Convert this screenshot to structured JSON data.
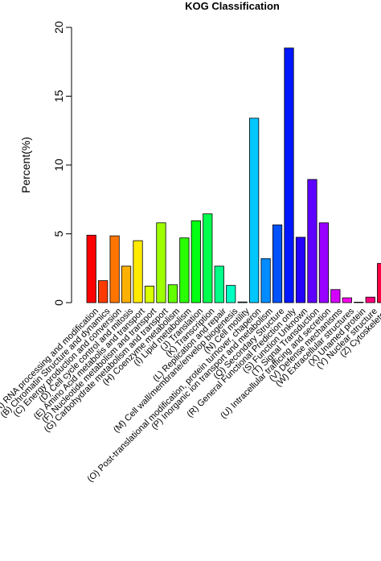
{
  "chart_data": {
    "type": "bar",
    "title": "KOG Classification",
    "xlabel": "",
    "ylabel": "Percent(%)",
    "ylim": [
      0,
      20
    ],
    "yticks": [
      0,
      5,
      10,
      15,
      20
    ],
    "grid": false,
    "legend": "none",
    "categories": [
      "(A) RNA processing and modification",
      "(B) Chromatin Structure and dynamics",
      "(C) Energy production and conversion",
      "(D) Cell cycle control and mitosis",
      "(E) Amino Acid metabolis and transport",
      "(F) Nucleotide metabolism and transport",
      "(G) Carbohydrate metabolism and transport",
      "(H) Coenzyme metabolism",
      "(I) Lipid metabolism",
      "(J) Translation",
      "(K) Transcription",
      "(L) Replication and repair",
      "(M) Cell wall/membrane/envelop biogenesis",
      "(N) Cell motility",
      "(O) Post-translational modification, protein turnover, chaperon",
      "(P) Inorganic ion transport and metabolism",
      "(Q) Secondary Structure",
      "(R) General Functional Prediction only",
      "(S) Function Unknown",
      "(T) Signal Transduction",
      "(U) Intracellular trafficing and secretion",
      "(V) Defense mechanisms",
      "(W) Extracellular structures",
      "(X) Unamed protein",
      "(Y) Nuclear structure",
      "(Z) Cytoskeleton"
    ],
    "values": [
      4.9,
      1.6,
      4.85,
      2.65,
      4.5,
      1.2,
      5.8,
      1.3,
      4.7,
      5.95,
      6.45,
      2.65,
      1.25,
      0.05,
      13.4,
      3.2,
      5.65,
      18.5,
      4.75,
      8.95,
      5.8,
      0.95,
      0.35,
      0.02,
      0.4,
      2.85
    ],
    "colors": [
      "#ff0000",
      "#ff3a00",
      "#ff7500",
      "#ffb000",
      "#ffea00",
      "#d9ff00",
      "#9eff00",
      "#63ff00",
      "#29ff00",
      "#00ff12",
      "#00ff4d",
      "#00ff87",
      "#00ffc2",
      "#00fffc",
      "#00c7ff",
      "#008cff",
      "#0052ff",
      "#0017ff",
      "#2400ff",
      "#5e00ff",
      "#9900ff",
      "#d400ff",
      "#ff00f0",
      "#ff00b5",
      "#ff007b",
      "#ff0040"
    ]
  }
}
